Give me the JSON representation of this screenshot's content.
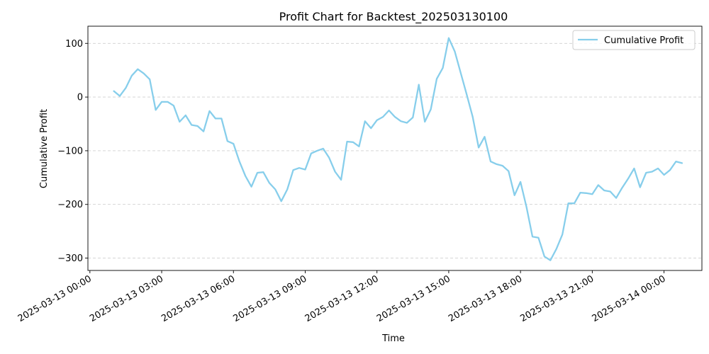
{
  "chart_data": {
    "type": "line",
    "title": "Profit Chart for Backtest_202503130100",
    "xlabel": "Time",
    "ylabel": "Cumulative Profit",
    "x_axis_type": "datetime",
    "xlim": [
      "2025-03-12 23:55",
      "2025-03-14 01:35"
    ],
    "ylim": [
      -323,
      132
    ],
    "grid": "horizontal-dashed",
    "legend_position": "top-right",
    "xticks": [
      {
        "t": "2025-03-13 00:00",
        "label": "2025-03-13 00:00"
      },
      {
        "t": "2025-03-13 03:00",
        "label": "2025-03-13 03:00"
      },
      {
        "t": "2025-03-13 06:00",
        "label": "2025-03-13 06:00"
      },
      {
        "t": "2025-03-13 09:00",
        "label": "2025-03-13 09:00"
      },
      {
        "t": "2025-03-13 12:00",
        "label": "2025-03-13 12:00"
      },
      {
        "t": "2025-03-13 15:00",
        "label": "2025-03-13 15:00"
      },
      {
        "t": "2025-03-13 18:00",
        "label": "2025-03-13 18:00"
      },
      {
        "t": "2025-03-13 21:00",
        "label": "2025-03-13 21:00"
      },
      {
        "t": "2025-03-14 00:00",
        "label": "2025-03-14 00:00"
      }
    ],
    "yticks": [
      {
        "v": 100,
        "label": "100"
      },
      {
        "v": 0,
        "label": "0"
      },
      {
        "v": -100,
        "label": "−100"
      },
      {
        "v": -200,
        "label": "−200"
      },
      {
        "v": -300,
        "label": "−300"
      }
    ],
    "series": [
      {
        "name": "Cumulative Profit",
        "color": "#87ceeb",
        "x": [
          "2025-03-13 01:00",
          "2025-03-13 01:15",
          "2025-03-13 01:30",
          "2025-03-13 01:45",
          "2025-03-13 02:00",
          "2025-03-13 02:15",
          "2025-03-13 02:30",
          "2025-03-13 02:45",
          "2025-03-13 03:00",
          "2025-03-13 03:15",
          "2025-03-13 03:30",
          "2025-03-13 03:45",
          "2025-03-13 04:00",
          "2025-03-13 04:15",
          "2025-03-13 04:30",
          "2025-03-13 04:45",
          "2025-03-13 05:00",
          "2025-03-13 05:15",
          "2025-03-13 05:30",
          "2025-03-13 05:45",
          "2025-03-13 06:00",
          "2025-03-13 06:15",
          "2025-03-13 06:30",
          "2025-03-13 06:45",
          "2025-03-13 07:00",
          "2025-03-13 07:15",
          "2025-03-13 07:30",
          "2025-03-13 07:45",
          "2025-03-13 08:00",
          "2025-03-13 08:15",
          "2025-03-13 08:30",
          "2025-03-13 08:45",
          "2025-03-13 09:00",
          "2025-03-13 09:15",
          "2025-03-13 09:30",
          "2025-03-13 09:45",
          "2025-03-13 10:00",
          "2025-03-13 10:15",
          "2025-03-13 10:30",
          "2025-03-13 10:45",
          "2025-03-13 11:00",
          "2025-03-13 11:15",
          "2025-03-13 11:30",
          "2025-03-13 11:45",
          "2025-03-13 12:00",
          "2025-03-13 12:15",
          "2025-03-13 12:30",
          "2025-03-13 12:45",
          "2025-03-13 13:00",
          "2025-03-13 13:15",
          "2025-03-13 13:30",
          "2025-03-13 13:45",
          "2025-03-13 14:00",
          "2025-03-13 14:15",
          "2025-03-13 14:30",
          "2025-03-13 14:45",
          "2025-03-13 15:00",
          "2025-03-13 15:15",
          "2025-03-13 15:30",
          "2025-03-13 15:45",
          "2025-03-13 16:00",
          "2025-03-13 16:15",
          "2025-03-13 16:30",
          "2025-03-13 16:45",
          "2025-03-13 17:00",
          "2025-03-13 17:15",
          "2025-03-13 17:30",
          "2025-03-13 17:45",
          "2025-03-13 18:00",
          "2025-03-13 18:15",
          "2025-03-13 18:30",
          "2025-03-13 18:45",
          "2025-03-13 19:00",
          "2025-03-13 19:15",
          "2025-03-13 19:30",
          "2025-03-13 19:45",
          "2025-03-13 20:00",
          "2025-03-13 20:15",
          "2025-03-13 20:30",
          "2025-03-13 20:45",
          "2025-03-13 21:00",
          "2025-03-13 21:15",
          "2025-03-13 21:30",
          "2025-03-13 21:45",
          "2025-03-13 22:00",
          "2025-03-13 22:15",
          "2025-03-13 22:30",
          "2025-03-13 22:45",
          "2025-03-13 23:00",
          "2025-03-13 23:15",
          "2025-03-13 23:30",
          "2025-03-13 23:45",
          "2025-03-14 00:00",
          "2025-03-14 00:15",
          "2025-03-14 00:30",
          "2025-03-14 00:45"
        ],
        "values": [
          11,
          2,
          17,
          40,
          52,
          44,
          33,
          -24,
          -9,
          -9,
          -16,
          -46,
          -34,
          -52,
          -54,
          -64,
          -26,
          -40,
          -40,
          -82,
          -87,
          -120,
          -147,
          -167,
          -141,
          -140,
          -160,
          -172,
          -194,
          -172,
          -136,
          -132,
          -135,
          -105,
          -100,
          -96,
          -113,
          -139,
          -154,
          -83,
          -84,
          -92,
          -45,
          -58,
          -43,
          -37,
          -25,
          -37,
          -45,
          -48,
          -38,
          23,
          -46,
          -23,
          34,
          54,
          110,
          85,
          45,
          5,
          -37,
          -94,
          -74,
          -120,
          -125,
          -128,
          -138,
          -183,
          -158,
          -205,
          -260,
          -262,
          -297,
          -304,
          -283,
          -256,
          -198,
          -198,
          -178,
          -179,
          -181,
          -164,
          -174,
          -176,
          -188,
          -169,
          -152,
          -133,
          -168,
          -141,
          -139,
          -133,
          -145,
          -136,
          -120,
          -123
        ]
      }
    ]
  }
}
